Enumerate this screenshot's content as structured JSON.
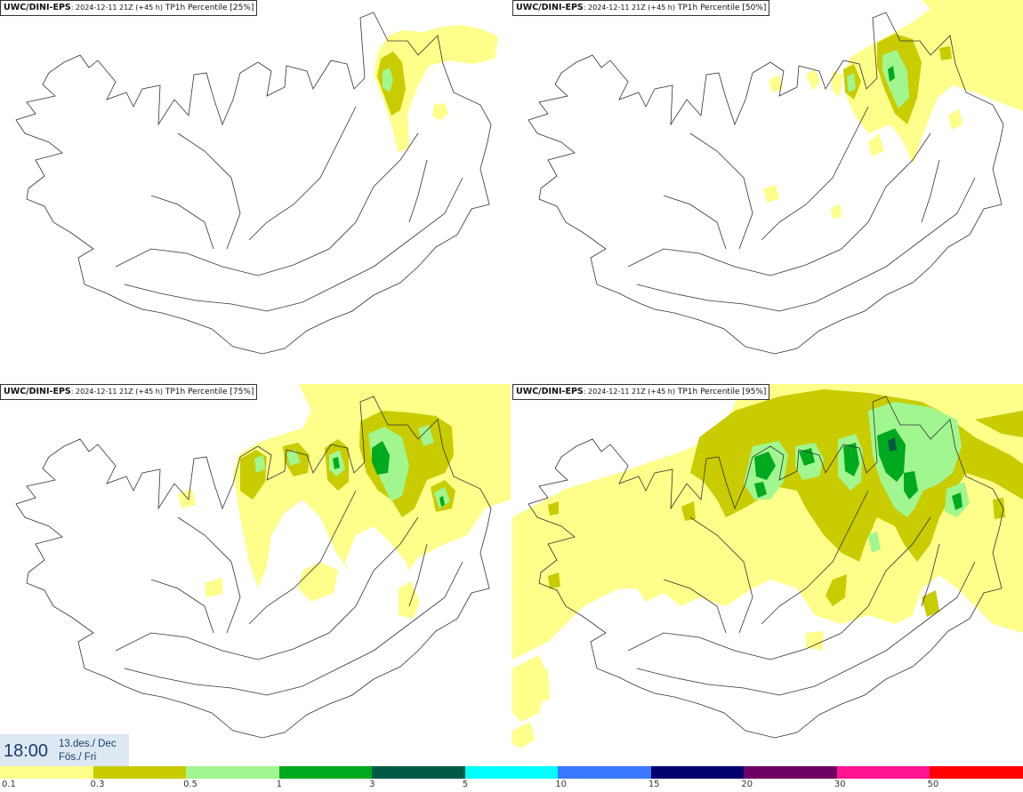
{
  "panels": [
    {
      "model": "UWC/DINI-EPS",
      "run": ": 2024-12-11 21Z (+45 h)",
      "field": " TP1h Percentile [25%]"
    },
    {
      "model": "UWC/DINI-EPS",
      "run": ": 2024-12-11 21Z (+45 h)",
      "field": " TP1h Percentile [50%]"
    },
    {
      "model": "UWC/DINI-EPS",
      "run": ": 2024-12-11 21Z (+45 h)",
      "field": " TP1h Percentile [75%]"
    },
    {
      "model": "UWC/DINI-EPS",
      "run": ": 2024-12-11 21Z (+45 h)",
      "field": " TP1h Percentile [95%]"
    }
  ],
  "valid_time": {
    "hour": "18:00",
    "date_line1": "13.des./ Dec",
    "date_line2": "Fös./ Fri"
  },
  "legend": {
    "colors": [
      "#fefe8a",
      "#c8cc00",
      "#a2f690",
      "#00aa1e",
      "#005a46",
      "#00ffff",
      "#3a78ff",
      "#00006e",
      "#6e0064",
      "#ff1490",
      "#ff0000"
    ],
    "labels": [
      "0.1",
      "0.3",
      "0.5",
      "1",
      "3",
      "5",
      "10",
      "15",
      "20",
      "30",
      "50"
    ]
  }
}
